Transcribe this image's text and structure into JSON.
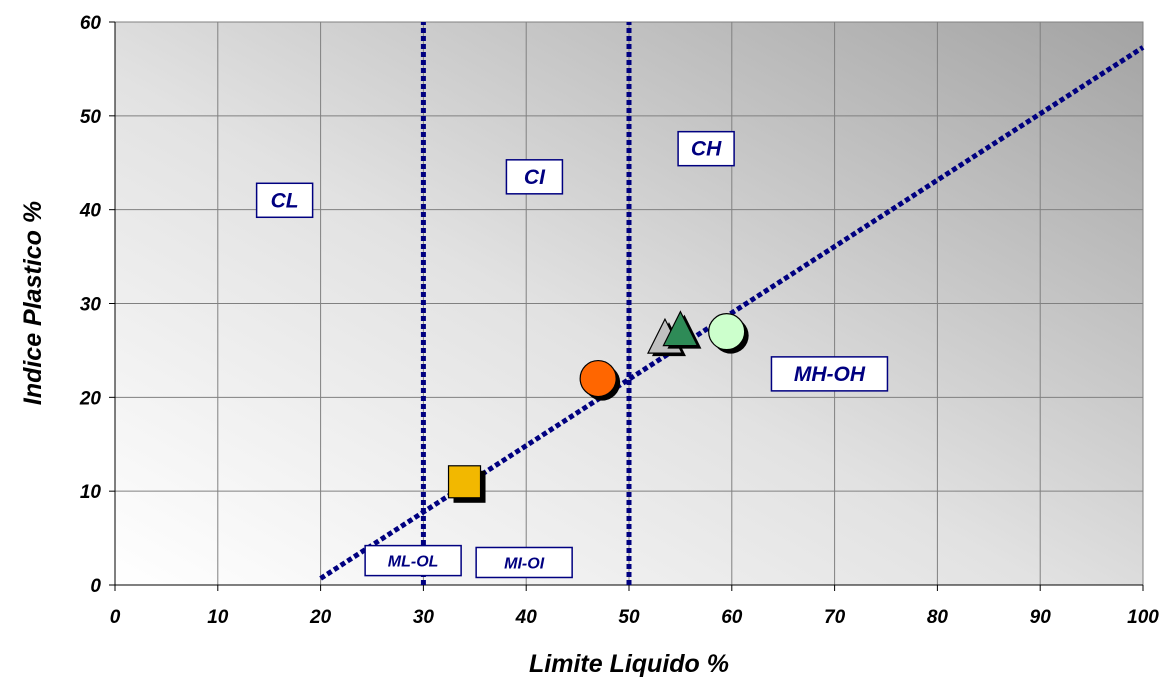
{
  "chart_data": {
    "type": "scatter",
    "xlabel": "Limite Liquido %",
    "ylabel": "Indice Plastico %",
    "xlim": [
      0,
      100
    ],
    "ylim": [
      0,
      60
    ],
    "x_ticks": [
      "0",
      "10",
      "20",
      "30",
      "40",
      "50",
      "60",
      "70",
      "80",
      "90",
      "100"
    ],
    "y_ticks": [
      "0",
      "10",
      "20",
      "30",
      "40",
      "50",
      "60"
    ],
    "grid": true,
    "a_line": {
      "from": [
        20,
        0.7
      ],
      "to": [
        100,
        57.3
      ],
      "color": "#000080"
    },
    "boundaries": [
      {
        "x": 30,
        "from_y": 0,
        "to_y": 60,
        "color": "#000080"
      },
      {
        "x": 50,
        "from_y": 0,
        "to_y": 60,
        "color": "#000080"
      }
    ],
    "zones": [
      {
        "label": "CL",
        "x": 16.5,
        "y": 41
      },
      {
        "label": "CI",
        "x": 40.8,
        "y": 43.5
      },
      {
        "label": "CH",
        "x": 57.5,
        "y": 46.5
      },
      {
        "label": "MH-OH",
        "x": 69.5,
        "y": 22.5
      },
      {
        "label": "ML-OL",
        "x": 29,
        "y": 2.6
      },
      {
        "label": "MI-OI",
        "x": 39.8,
        "y": 2.4
      }
    ],
    "points": [
      {
        "x": 34,
        "y": 11,
        "shape": "square",
        "color": "#f2b800"
      },
      {
        "x": 47,
        "y": 22,
        "shape": "circle",
        "color": "#ff6600"
      },
      {
        "x": 53.5,
        "y": 26.2,
        "shape": "triangle",
        "color": "#c0c0c0"
      },
      {
        "x": 55,
        "y": 27,
        "shape": "triangle",
        "color": "#2e8b57"
      },
      {
        "x": 59.5,
        "y": 27,
        "shape": "circle",
        "color": "#ccffcc"
      }
    ]
  }
}
